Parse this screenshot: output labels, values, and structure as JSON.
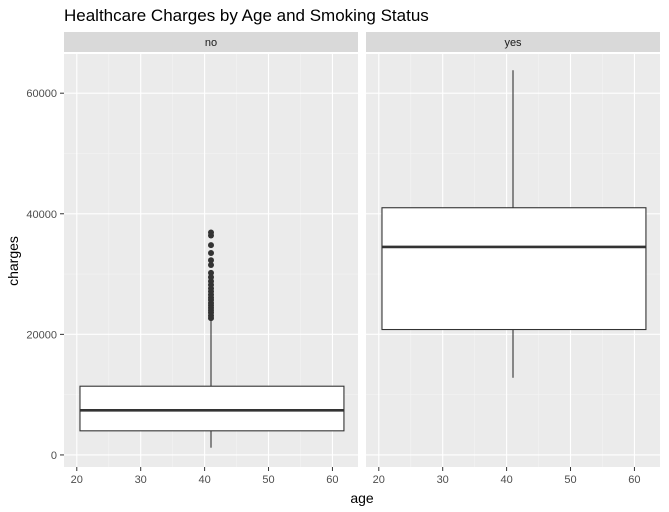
{
  "chart_data": {
    "type": "boxplot",
    "title": "Healthcare Charges by Age and Smoking Status",
    "xlabel": "age",
    "ylabel": "charges",
    "facet_variable": "smoker",
    "xlim": [
      18.0,
      64.0
    ],
    "ylim": [
      -2000,
      66500
    ],
    "x_major_ticks": [
      20,
      30,
      40,
      50,
      60
    ],
    "x_minor_ticks": [
      25,
      35,
      45,
      55
    ],
    "y_major_ticks": [
      0,
      20000,
      40000,
      60000
    ],
    "y_tick_labels": [
      "0",
      "20000",
      "40000",
      "60000"
    ],
    "y_minor_ticks": [
      10000,
      30000,
      50000
    ],
    "grid": true,
    "panels": [
      {
        "label": "no",
        "box": {
          "x_center": 41,
          "x_min": 20.5,
          "x_max": 61.8,
          "q1": 4000,
          "median": 7400,
          "q3": 11400,
          "whisker_low": 1200,
          "whisker_high": 22400
        },
        "outliers": [
          22700,
          23100,
          23600,
          24000,
          24400,
          24800,
          25200,
          25700,
          26100,
          26600,
          27100,
          27600,
          28200,
          28800,
          29500,
          30200,
          31500,
          32300,
          33500,
          34800,
          36400,
          36900
        ]
      },
      {
        "label": "yes",
        "box": {
          "x_center": 41,
          "x_min": 20.5,
          "x_max": 61.8,
          "q1": 20800,
          "median": 34500,
          "q3": 41000,
          "whisker_low": 12800,
          "whisker_high": 63800
        },
        "outliers": []
      }
    ]
  }
}
